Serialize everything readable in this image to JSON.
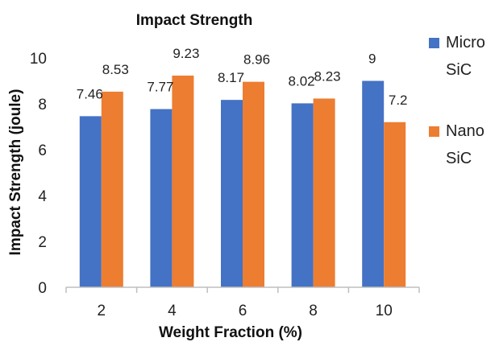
{
  "chart_data": {
    "type": "bar",
    "title": "Impact Strength",
    "xlabel": "Weight Fraction (%)",
    "ylabel": "Impact Strength (joule)",
    "categories": [
      "2",
      "4",
      "6",
      "8",
      "10"
    ],
    "series": [
      {
        "name": "Micro SiC",
        "legend_lines": [
          "Micro",
          "SiC"
        ],
        "color": "#4472C4",
        "values": [
          7.46,
          7.77,
          8.17,
          8.02,
          9
        ],
        "labels": [
          "7.46",
          "7.77",
          "8.17",
          "8.02",
          "9"
        ]
      },
      {
        "name": "Nano SiC",
        "legend_lines": [
          "Nano",
          "SiC"
        ],
        "color": "#ED7D31",
        "values": [
          8.53,
          9.23,
          8.96,
          8.23,
          7.2
        ],
        "labels": [
          "8.53",
          "9.23",
          "8.96",
          "8.23",
          "7.2"
        ]
      }
    ],
    "ylim": [
      0,
      10
    ],
    "yticks": [
      0,
      2,
      4,
      6,
      8,
      10
    ],
    "grid": false,
    "legend": "right"
  }
}
